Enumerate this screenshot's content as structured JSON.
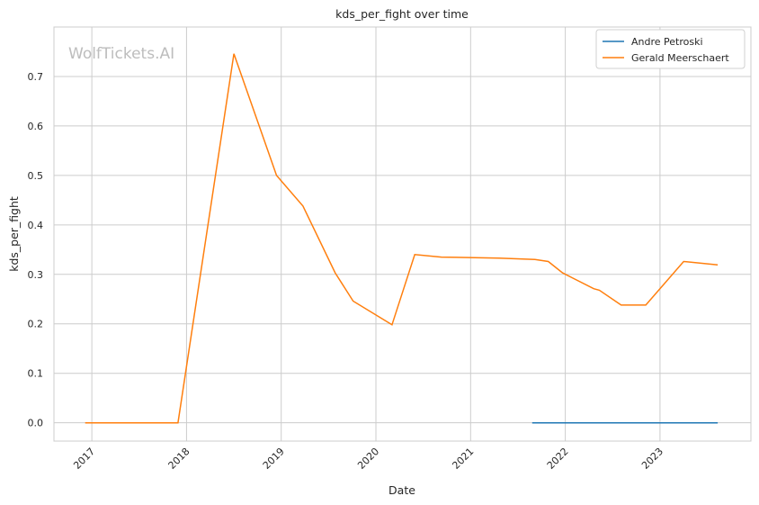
{
  "chart_data": {
    "type": "line",
    "title": "kds_per_fight over time",
    "xlabel": "Date",
    "ylabel": "kds_per_fight",
    "xlim": [
      2016.6,
      2023.96
    ],
    "ylim": [
      -0.037,
      0.8
    ],
    "x_ticks": [
      2017,
      2018,
      2019,
      2020,
      2021,
      2022,
      2023
    ],
    "x_tick_labels": [
      "2017",
      "2018",
      "2019",
      "2020",
      "2021",
      "2022",
      "2023"
    ],
    "y_ticks": [
      0.0,
      0.1,
      0.2,
      0.3,
      0.4,
      0.5,
      0.6,
      0.7
    ],
    "y_tick_labels": [
      "0.0",
      "0.1",
      "0.2",
      "0.3",
      "0.4",
      "0.5",
      "0.6",
      "0.7"
    ],
    "grid": true,
    "legend_placement": "top-right",
    "watermark": "WolfTickets.AI",
    "series": [
      {
        "name": "Andre Petroski",
        "color": "#1f77b4",
        "x": [
          2021.65,
          2022.0,
          2022.5,
          2023.0,
          2023.61
        ],
        "y": [
          0,
          0,
          0,
          0,
          0
        ]
      },
      {
        "name": "Gerald Meerschaert",
        "color": "#ff7f0e",
        "x": [
          2016.93,
          2017.91,
          2018.5,
          2018.95,
          2019.23,
          2019.57,
          2019.76,
          2020.17,
          2020.41,
          2020.69,
          2021.3,
          2021.68,
          2021.82,
          2021.97,
          2022.3,
          2022.36,
          2022.59,
          2022.85,
          2023.25,
          2023.61
        ],
        "y": [
          0,
          0,
          0.746,
          0.5,
          0.438,
          0.303,
          0.246,
          0.198,
          0.34,
          0.335,
          0.333,
          0.33,
          0.326,
          0.303,
          0.271,
          0.268,
          0.238,
          0.238,
          0.326,
          0.319
        ]
      }
    ]
  }
}
